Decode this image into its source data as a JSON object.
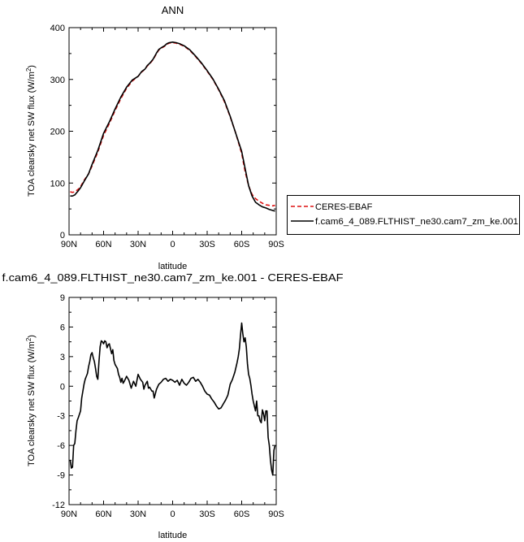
{
  "chart_data": [
    {
      "type": "line",
      "title": "ANN",
      "xlabel": "latitude",
      "ylabel": "TOA clearsky net SW flux (W/m",
      "ylabel_sup": "2",
      "ylabel_close": ")",
      "xlim": [
        90,
        -90
      ],
      "ylim": [
        0,
        400
      ],
      "x_ticks": [
        90,
        60,
        30,
        0,
        -30,
        -60,
        -90
      ],
      "x_tick_labels": [
        "90N",
        "60N",
        "30N",
        "0",
        "30S",
        "60S",
        "90S"
      ],
      "y_ticks": [
        0,
        100,
        200,
        300,
        400
      ],
      "y_tick_labels": [
        "0",
        "100",
        "200",
        "300",
        "400"
      ],
      "grid": false,
      "legend_position": "right",
      "series": [
        {
          "name": "CERES-EBAF",
          "color": "#dd1111",
          "dash": "dashed",
          "x": [
            89,
            87,
            85,
            82,
            80,
            77,
            73,
            70,
            65,
            60,
            55,
            50,
            45,
            40,
            35,
            30,
            27,
            24,
            22,
            20,
            17,
            14,
            12,
            10,
            7,
            5,
            3,
            0,
            -3,
            -6,
            -10,
            -15,
            -20,
            -25,
            -30,
            -35,
            -40,
            -45,
            -50,
            -55,
            -60,
            -63,
            -66,
            -69,
            -72,
            -75,
            -78,
            -81,
            -84,
            -87,
            -89
          ],
          "y": [
            83,
            82,
            83,
            88,
            93,
            105,
            118,
            133,
            160,
            192,
            215,
            240,
            263,
            283,
            297,
            306,
            314,
            320,
            326,
            330,
            338,
            350,
            357,
            360,
            364,
            368,
            370,
            371,
            370,
            368,
            364,
            356,
            344,
            331,
            316,
            300,
            280,
            257,
            228,
            195,
            157,
            122,
            95,
            78,
            70,
            65,
            61,
            58,
            57,
            56,
            57
          ]
        },
        {
          "name": "f.cam6_4_089.FLTHIST_ne30.cam7_zm_ke.001",
          "color": "#000000",
          "dash": "solid",
          "x": [
            89,
            87,
            85,
            82,
            80,
            77,
            73,
            70,
            65,
            60,
            55,
            50,
            45,
            40,
            35,
            30,
            27,
            24,
            22,
            20,
            17,
            14,
            12,
            10,
            7,
            5,
            3,
            0,
            -3,
            -6,
            -10,
            -15,
            -20,
            -25,
            -30,
            -35,
            -40,
            -45,
            -50,
            -55,
            -60,
            -63,
            -66,
            -69,
            -72,
            -75,
            -78,
            -81,
            -84,
            -87,
            -89
          ],
          "y": [
            75,
            75,
            77,
            85,
            91,
            103,
            118,
            136,
            163,
            196,
            218,
            243,
            266,
            285,
            299,
            306,
            315,
            320,
            327,
            331,
            339,
            351,
            358,
            361,
            365,
            369,
            371,
            372,
            371,
            369,
            365,
            357,
            345,
            332,
            317,
            301,
            281,
            259,
            229,
            195,
            161,
            128,
            95,
            75,
            63,
            58,
            54,
            52,
            49,
            47,
            46
          ]
        }
      ]
    },
    {
      "type": "line",
      "title": "f.cam6_4_089.FLTHIST_ne30.cam7_zm_ke.001 - CERES-EBAF",
      "xlabel": "latitude",
      "ylabel": "TOA clearsky net SW flux (W/m",
      "ylabel_sup": "2",
      "ylabel_close": ")",
      "xlim": [
        90,
        -90
      ],
      "ylim": [
        -12,
        9
      ],
      "x_ticks": [
        90,
        60,
        30,
        0,
        -30,
        -60,
        -90
      ],
      "x_tick_labels": [
        "90N",
        "60N",
        "30N",
        "0",
        "30S",
        "60S",
        "90S"
      ],
      "y_ticks": [
        -12,
        -9,
        -6,
        -3,
        0,
        3,
        6,
        9
      ],
      "y_tick_labels": [
        "-12",
        "-9",
        "-6",
        "-3",
        "0",
        "3",
        "6",
        "9"
      ],
      "grid": false,
      "series": [
        {
          "color": "#000000",
          "dash": "solid",
          "x": [
            89,
            88,
            87,
            86,
            85,
            84,
            83,
            82,
            80,
            79,
            78,
            77,
            76,
            75,
            74,
            73,
            72,
            71,
            70,
            69,
            68,
            67,
            66,
            65,
            64,
            63,
            62,
            61,
            60,
            59,
            58,
            57,
            56,
            55,
            54,
            53,
            52,
            51,
            50,
            49,
            48,
            47,
            46,
            45,
            44,
            43,
            42,
            40,
            38,
            36,
            34,
            32,
            30,
            28,
            26,
            25,
            24,
            22,
            21,
            20,
            18,
            17,
            16,
            14,
            12,
            10,
            8,
            6,
            4,
            2,
            0,
            -2,
            -4,
            -6,
            -8,
            -10,
            -12,
            -14,
            -16,
            -18,
            -20,
            -22,
            -24,
            -26,
            -28,
            -30,
            -32,
            -34,
            -36,
            -38,
            -40,
            -42,
            -44,
            -46,
            -48,
            -50,
            -52,
            -54,
            -56,
            -57,
            -58,
            -59,
            -60,
            -61,
            -62,
            -63,
            -64,
            -65,
            -66,
            -67,
            -68,
            -69,
            -70,
            -71,
            -72,
            -73,
            -74,
            -75,
            -76,
            -77,
            -78,
            -79,
            -80,
            -81,
            -82,
            -83,
            -84,
            -85,
            -86,
            -87,
            -88,
            -89
          ],
          "y": [
            -7.5,
            -8.3,
            -8.2,
            -6.0,
            -5.8,
            -4.5,
            -3.5,
            -3.2,
            -2.5,
            -1.2,
            -0.5,
            0.2,
            0.7,
            1.0,
            1.3,
            2.0,
            2.5,
            3.2,
            3.4,
            2.9,
            2.5,
            1.8,
            1.0,
            0.7,
            2.5,
            4.0,
            4.6,
            4.5,
            4.3,
            4.6,
            4.5,
            3.9,
            4.2,
            4.3,
            3.8,
            3.3,
            3.7,
            2.6,
            2.2,
            2.0,
            1.8,
            1.2,
            0.9,
            0.4,
            0.8,
            0.3,
            0.5,
            1.0,
            0.6,
            -0.2,
            0.5,
            0.0,
            1.2,
            0.7,
            0.4,
            -0.3,
            0.1,
            0.5,
            -0.2,
            -0.1,
            -0.5,
            -0.5,
            -1.2,
            -0.3,
            0.2,
            0.4,
            0.7,
            0.8,
            0.5,
            0.7,
            0.6,
            0.4,
            0.6,
            0.1,
            0.7,
            0.3,
            0.1,
            0.4,
            0.8,
            0.9,
            0.5,
            0.7,
            0.4,
            0.0,
            -0.5,
            -0.8,
            -0.9,
            -1.3,
            -1.6,
            -2.0,
            -2.3,
            -2.2,
            -1.8,
            -1.4,
            -0.9,
            0.2,
            0.7,
            1.4,
            2.4,
            3.0,
            3.8,
            5.2,
            6.4,
            5.3,
            4.5,
            4.9,
            4.0,
            2.3,
            1.2,
            0.8,
            0.1,
            -0.8,
            -1.5,
            -2.0,
            -2.5,
            -1.5,
            -3.0,
            -3.0,
            -3.5,
            -3.7,
            -2.4,
            -2.8,
            -3.5,
            -2.5,
            -2.5,
            -5.2,
            -6.0,
            -7.5,
            -8.5,
            -9.0,
            -6.5,
            -6.0
          ]
        }
      ]
    }
  ]
}
